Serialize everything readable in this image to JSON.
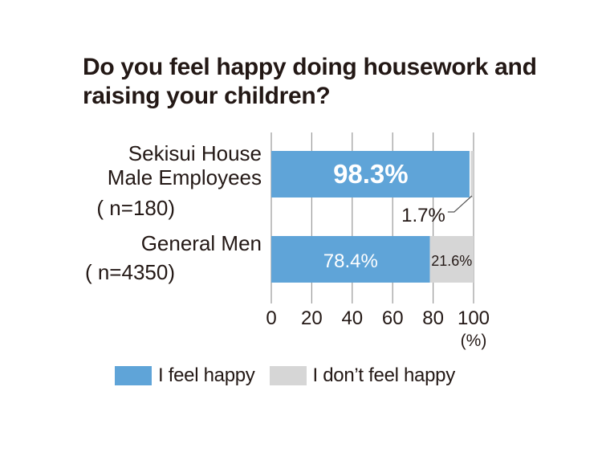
{
  "chart_data": {
    "type": "bar",
    "orientation": "horizontal",
    "stacked": true,
    "title": "Do you feel happy doing housework and raising your children?",
    "categories": [
      {
        "lines": [
          "Sekisui House",
          "Male Employees",
          "( n=180)"
        ]
      },
      {
        "lines": [
          "General Men",
          "( n=4350)"
        ]
      }
    ],
    "series": [
      {
        "name": "I feel happy",
        "values": [
          98.3,
          78.4
        ],
        "labels": [
          "98.3%",
          "78.4%"
        ],
        "color": "#5fa4d8"
      },
      {
        "name": "I don’t feel happy",
        "values": [
          1.7,
          21.6
        ],
        "labels": [
          "1.7%",
          "21.6%"
        ],
        "color": "#d6d6d6"
      }
    ],
    "xlim": [
      0,
      100
    ],
    "xticks": [
      "0",
      "20",
      "40",
      "60",
      "80",
      "100"
    ],
    "xunit": "(%)",
    "grid": "vertical",
    "legend_position": "bottom"
  }
}
